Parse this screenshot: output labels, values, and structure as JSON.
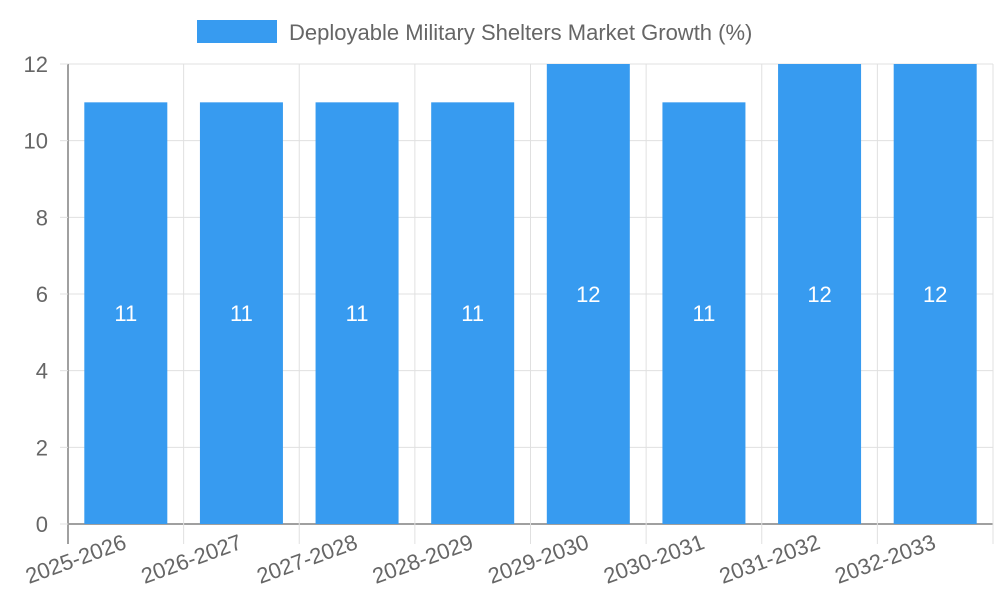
{
  "chart_data": {
    "type": "bar",
    "title": "",
    "legend": {
      "label": "Deployable Military Shelters Market Growth (%)",
      "placement": "top-center"
    },
    "categories": [
      "2025-2026",
      "2026-2027",
      "2027-2028",
      "2028-2029",
      "2029-2030",
      "2030-2031",
      "2031-2032",
      "2032-2033"
    ],
    "series": [
      {
        "name": "Deployable Military Shelters Market Growth (%)",
        "values": [
          11,
          11,
          11,
          11,
          12,
          11,
          12,
          12
        ]
      }
    ],
    "xlabel": "",
    "ylabel": "",
    "ylim": [
      0,
      12
    ],
    "yticks": [
      0,
      2,
      4,
      6,
      8,
      10,
      12
    ],
    "grid": true,
    "colors": {
      "bar": "#379bf0",
      "grid": "#e0e0e0",
      "axis": "#a0a0a0",
      "text": "#666666",
      "label": "#ffffff"
    }
  }
}
